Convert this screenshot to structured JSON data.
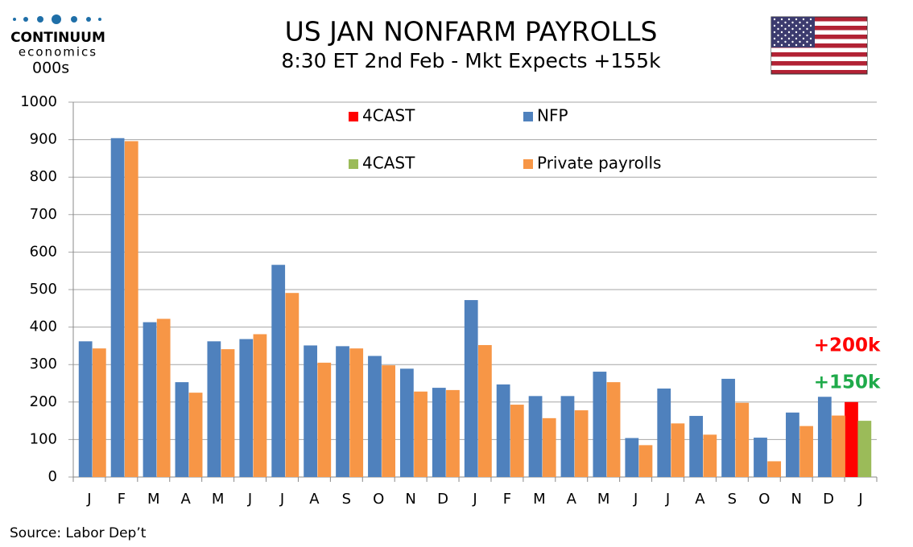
{
  "logo": [
    "CONTINUUM",
    "economics"
  ],
  "chart_data": {
    "type": "bar",
    "title": "US JAN NONFARM PAYROLLS",
    "subtitle": "8:30 ET 2nd Feb - Mkt Expects +155k",
    "y_label": "000s",
    "source": "Source: Labor Dep’t",
    "categories": [
      "J",
      "F",
      "M",
      "A",
      "M",
      "J",
      "J",
      "A",
      "S",
      "O",
      "N",
      "D",
      "J",
      "F",
      "M",
      "A",
      "M",
      "J",
      "J",
      "A",
      "S",
      "O",
      "N",
      "D",
      "J"
    ],
    "series": [
      {
        "name": "4CAST",
        "color": "#ff0000",
        "values": [
          null,
          null,
          null,
          null,
          null,
          null,
          null,
          null,
          null,
          null,
          null,
          null,
          null,
          null,
          null,
          null,
          null,
          null,
          null,
          null,
          null,
          null,
          null,
          null,
          200
        ]
      },
      {
        "name": "NFP",
        "color": "#4f81bd",
        "values": [
          362,
          904,
          413,
          253,
          362,
          368,
          566,
          351,
          349,
          323,
          289,
          238,
          472,
          247,
          216,
          216,
          281,
          104,
          236,
          163,
          262,
          105,
          172,
          214,
          null
        ]
      },
      {
        "name": "4CAST",
        "color": "#9bbb59",
        "values": [
          null,
          null,
          null,
          null,
          null,
          null,
          null,
          null,
          null,
          null,
          null,
          null,
          null,
          null,
          null,
          null,
          null,
          null,
          null,
          null,
          null,
          null,
          null,
          null,
          150
        ]
      },
      {
        "name": "Private payrolls",
        "color": "#f79646",
        "values": [
          343,
          896,
          422,
          225,
          341,
          381,
          491,
          305,
          343,
          298,
          228,
          232,
          352,
          193,
          157,
          178,
          253,
          85,
          143,
          113,
          198,
          42,
          136,
          164,
          null
        ]
      }
    ],
    "annotations": [
      {
        "text": "+200k",
        "color": "#ff0000"
      },
      {
        "text": "+150k",
        "color": "#1faa4a"
      }
    ],
    "ylim": [
      0,
      1000
    ],
    "yticks": [
      0,
      100,
      200,
      300,
      400,
      500,
      600,
      700,
      800,
      900,
      1000
    ],
    "grid": true
  }
}
